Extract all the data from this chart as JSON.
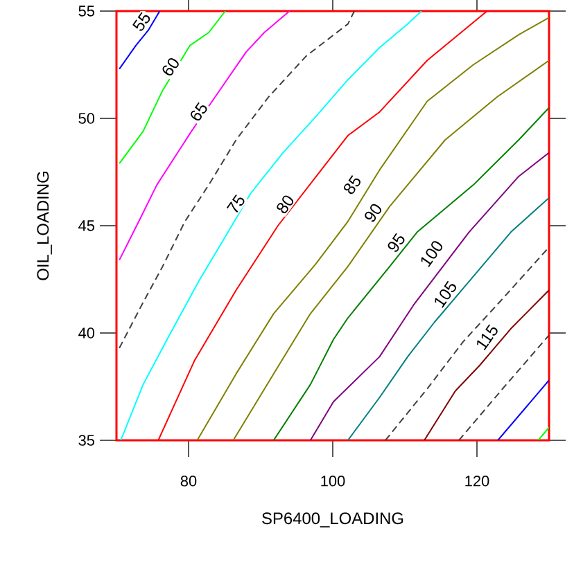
{
  "chart_data": {
    "type": "line",
    "xlabel": "SP6400_LOADING",
    "ylabel": "OIL_LOADING",
    "xlim": [
      70,
      130
    ],
    "ylim": [
      35,
      55
    ],
    "xticks": [
      80,
      100,
      120
    ],
    "yticks": [
      35,
      40,
      45,
      50,
      55
    ],
    "grid": false,
    "legend": false,
    "marker": "none",
    "line_style": "solid",
    "series": [
      {
        "color": "#0000ff",
        "x": [
          70.4,
          72.7,
          74.4,
          76.0
        ],
        "values": [
          52.3,
          53.4,
          54.1,
          55
        ]
      },
      {
        "color": "#00ff00",
        "x": [
          70.4,
          73.7,
          76.4,
          77.5,
          80.2,
          82.8,
          85.1
        ],
        "values": [
          47.9,
          49.4,
          51.3,
          51.9,
          53.4,
          54.0,
          55
        ]
      },
      {
        "color": "#ff00ff",
        "x": [
          70.4,
          73.1,
          75.6,
          80.4,
          81.4,
          84.1,
          88.0,
          90.5,
          94.0
        ],
        "values": [
          43.4,
          45.2,
          46.9,
          49.4,
          null,
          51.2,
          53.1,
          54.0,
          55
        ]
      },
      {
        "color": "#404040",
        "line_style": "dashed",
        "x": [
          70.4,
          73.5,
          76.4,
          79.5,
          82.8,
          86.6,
          91.1,
          96.3,
          102.1,
          103.0
        ],
        "values": [
          39.3,
          41.3,
          43.1,
          45.2,
          46.9,
          49.0,
          51.0,
          52.9,
          54.4,
          55
        ]
      },
      {
        "color": "#00ffff",
        "x": [
          70.6,
          73.7,
          77.5,
          81.4,
          86.0,
          88.6,
          93.1,
          97.7,
          102.1,
          106.5,
          110.4,
          112.3
        ],
        "values": [
          35,
          37.6,
          40.0,
          42.4,
          45.0,
          46.5,
          48.4,
          50.1,
          51.8,
          53.3,
          54.4,
          55
        ]
      },
      {
        "color": "#ff0000",
        "x": [
          75.8,
          80.8,
          86.6,
          92.4,
          94.3,
          102.1,
          106.5,
          113.1,
          121.4
        ],
        "values": [
          35,
          38.7,
          42.0,
          45.0,
          null,
          49.2,
          50.3,
          52.7,
          55
        ]
      },
      {
        "color": "#808000",
        "x": [
          81.2,
          86.6,
          91.8,
          97.6,
          102.1,
          106.5,
          113.1,
          119.5,
          125.8,
          130
        ],
        "values": [
          35,
          38.1,
          40.9,
          43.2,
          45.2,
          47.6,
          50.8,
          52.5,
          53.9,
          54.7
        ]
      },
      {
        "color": "#808000",
        "x": [
          86.2,
          91.8,
          96.9,
          102.1,
          107.9,
          115.6,
          122.8,
          130
        ],
        "values": [
          35,
          38.1,
          40.9,
          43.1,
          45.9,
          49.0,
          51.0,
          52.7
        ]
      },
      {
        "color": "#008000",
        "x": [
          91.8,
          96.9,
          100.1,
          102.1,
          107.9,
          111.7,
          119.5,
          125.8,
          130
        ],
        "values": [
          35,
          37.6,
          39.7,
          40.7,
          43.1,
          44.7,
          46.9,
          49.0,
          50.5
        ]
      },
      {
        "color": "#800080",
        "x": [
          96.9,
          100.1,
          106.5,
          111.2,
          118.9,
          125.8,
          130
        ],
        "values": [
          35,
          36.8,
          38.9,
          41.3,
          44.7,
          47.3,
          48.4
        ]
      },
      {
        "color": "#008080",
        "x": [
          102.1,
          106.5,
          110.4,
          114.1,
          118.9,
          124.7,
          130
        ],
        "values": [
          35,
          37.0,
          38.9,
          40.5,
          42.4,
          44.7,
          46.3
        ]
      },
      {
        "color": "#404040",
        "line_style": "dashed",
        "x": [
          107.3,
          113.1,
          118.1,
          123.3,
          130
        ],
        "values": [
          35,
          37.4,
          39.6,
          41.5,
          44.0
        ]
      },
      {
        "color": "#800000",
        "x": [
          112.7,
          117.0,
          120.4,
          124.7,
          130
        ],
        "values": [
          35,
          37.3,
          38.5,
          40.2,
          42.0
        ]
      },
      {
        "color": "#404040",
        "line_style": "dashed",
        "x": [
          117.5,
          123.3,
          130
        ],
        "values": [
          35,
          37.3,
          39.9
        ]
      },
      {
        "color": "#0000ff",
        "x": [
          122.9,
          130
        ],
        "values": [
          35,
          37.8
        ]
      },
      {
        "color": "#00ff00",
        "x": [
          128.5,
          130
        ],
        "values": [
          35,
          35.6
        ]
      }
    ],
    "annotations": [
      {
        "text": "55",
        "x": 73.5,
        "y": 54.5
      },
      {
        "text": "60",
        "x": 77.5,
        "y": 52.4
      },
      {
        "text": "65",
        "x": 81.4,
        "y": 50.3
      },
      {
        "text": "75",
        "x": 86.6,
        "y": 46.0
      },
      {
        "text": "80",
        "x": 93.4,
        "y": 46.0
      },
      {
        "text": "85",
        "x": 102.7,
        "y": 46.9
      },
      {
        "text": "90",
        "x": 105.6,
        "y": 45.6
      },
      {
        "text": "95",
        "x": 108.8,
        "y": 44.2
      },
      {
        "text": "100",
        "x": 113.7,
        "y": 43.7
      },
      {
        "text": "105",
        "x": 115.6,
        "y": 41.8
      },
      {
        "text": "115",
        "x": 121.4,
        "y": 39.8
      }
    ]
  }
}
